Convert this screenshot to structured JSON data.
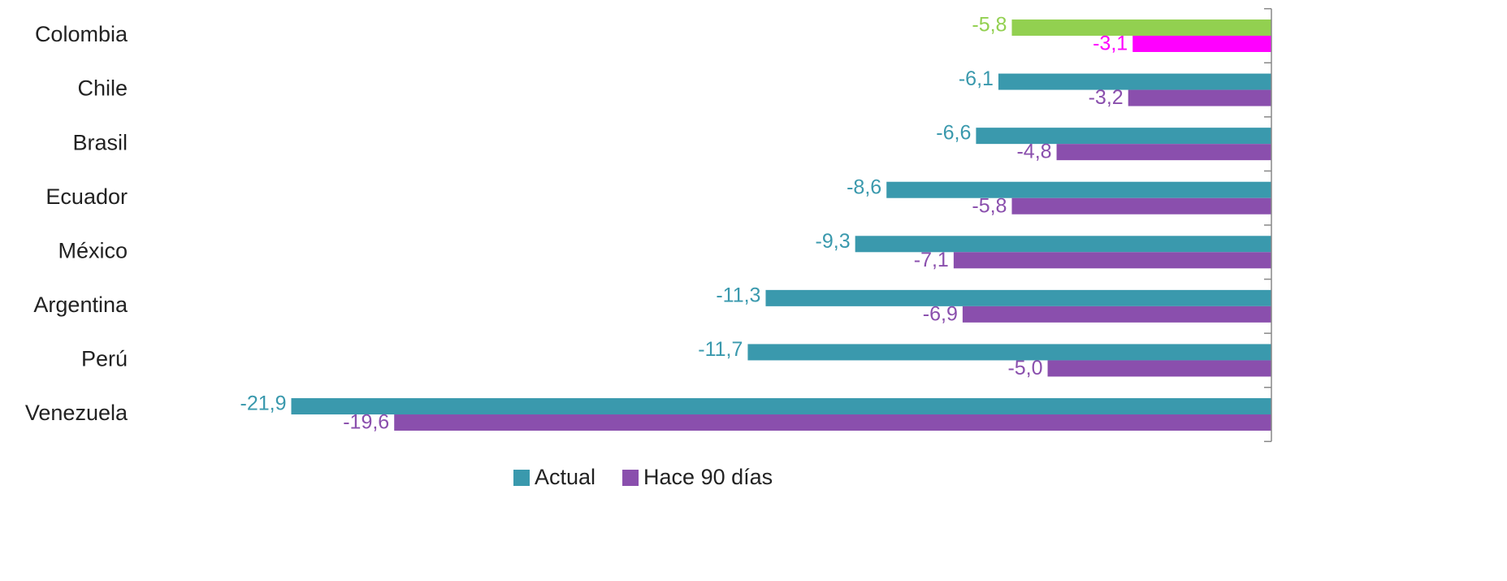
{
  "chart_data": {
    "type": "bar",
    "orientation": "horizontal",
    "categories": [
      "Colombia",
      "Chile",
      "Brasil",
      "Ecuador",
      "México",
      "Argentina",
      "Perú",
      "Venezuela"
    ],
    "series": [
      {
        "name": "Actual",
        "color": "#3a99ad",
        "colors": [
          "#92d050",
          "#3a99ad",
          "#3a99ad",
          "#3a99ad",
          "#3a99ad",
          "#3a99ad",
          "#3a99ad",
          "#3a99ad"
        ],
        "values": [
          -5.8,
          -6.1,
          -6.6,
          -8.6,
          -9.3,
          -11.3,
          -11.7,
          -21.9
        ],
        "value_labels": [
          "-5,8",
          "-6,1",
          "-6,6",
          "-8,6",
          "-9,3",
          "-11,3",
          "-11,7",
          "-21,9"
        ]
      },
      {
        "name": "Hace 90 días",
        "color": "#8a4fad",
        "colors": [
          "#ff00ff",
          "#8a4fad",
          "#8a4fad",
          "#8a4fad",
          "#8a4fad",
          "#8a4fad",
          "#8a4fad",
          "#8a4fad"
        ],
        "values": [
          -3.1,
          -3.2,
          -4.8,
          -5.8,
          -7.1,
          -6.9,
          -5.0,
          -19.6
        ],
        "value_labels": [
          "-3,1",
          "-3,2",
          "-4,8",
          "-5,8",
          "-7,1",
          "-6,9",
          "-5,0",
          "-19,6"
        ]
      }
    ],
    "xlim": [
      -22,
      0
    ],
    "legend": "bottom"
  }
}
